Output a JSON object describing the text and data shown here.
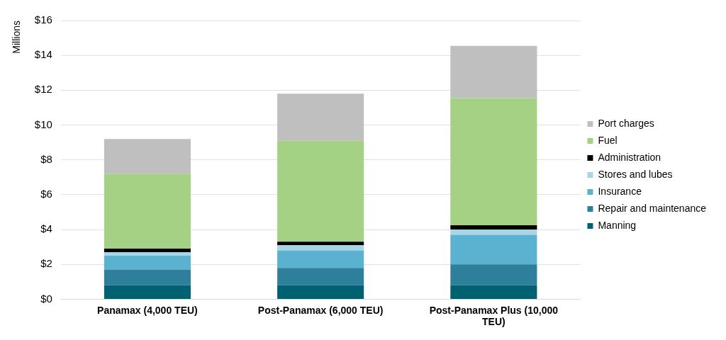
{
  "chart_data": {
    "type": "bar",
    "ylabel": "Millions",
    "categories": [
      "Panamax (4,000 TEU)",
      "Post-Panamax (6,000 TEU)",
      "Post-Panamax Plus (10,000 TEU)"
    ],
    "stacked": true,
    "legend": "right",
    "grid": "y",
    "ylim": [
      0,
      16
    ],
    "yticks": [
      {
        "value": 0,
        "label": "$0"
      },
      {
        "value": 2,
        "label": "$2"
      },
      {
        "value": 4,
        "label": "$4"
      },
      {
        "value": 6,
        "label": "$6"
      },
      {
        "value": 8,
        "label": "$8"
      },
      {
        "value": 10,
        "label": "$10"
      },
      {
        "value": 12,
        "label": "$12"
      },
      {
        "value": 14,
        "label": "$14"
      },
      {
        "value": 16,
        "label": "$16"
      }
    ],
    "series": [
      {
        "name": "Manning",
        "color": "#006170",
        "values": [
          0.8,
          0.8,
          0.8
        ]
      },
      {
        "name": "Repair and maintenance",
        "color": "#2e7f9b",
        "values": [
          0.9,
          1.0,
          1.2
        ]
      },
      {
        "name": "Insurance",
        "color": "#5bb1d0",
        "values": [
          0.8,
          1.0,
          1.7
        ]
      },
      {
        "name": "Stores and lubes",
        "color": "#a8d6e6",
        "values": [
          0.2,
          0.3,
          0.3
        ]
      },
      {
        "name": "Administration",
        "color": "#000000",
        "values": [
          0.2,
          0.2,
          0.25
        ]
      },
      {
        "name": "Fuel",
        "color": "#a5d185",
        "values": [
          4.3,
          5.8,
          7.3
        ]
      },
      {
        "name": "Port charges",
        "color": "#bfbfbf",
        "values": [
          2.0,
          2.7,
          3.0
        ]
      }
    ]
  }
}
